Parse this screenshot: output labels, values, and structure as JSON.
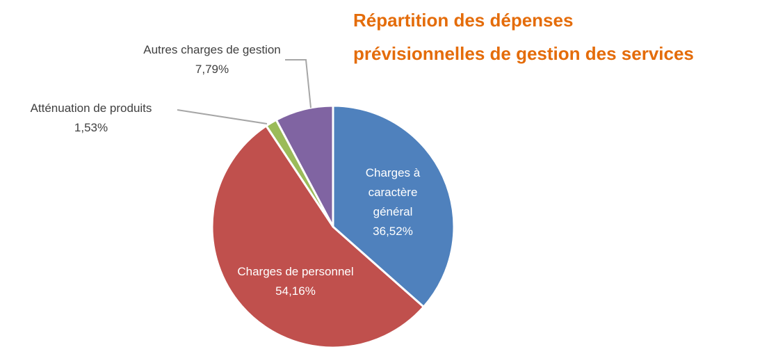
{
  "chart_data": {
    "type": "pie",
    "title": [
      "Répartition des dépenses",
      "prévisionnelles de gestion des services"
    ],
    "categories": [
      "Charges à caractère général",
      "Charges de personnel",
      "Atténuation de produits",
      "Autres charges de gestion"
    ],
    "values": [
      36.52,
      54.16,
      1.53,
      7.79
    ],
    "value_labels": [
      "36,52%",
      "54,16%",
      "1,53%",
      "7,79%"
    ],
    "colors": [
      "#4f81bd",
      "#c0504d",
      "#9bbb59",
      "#8064a2"
    ]
  }
}
